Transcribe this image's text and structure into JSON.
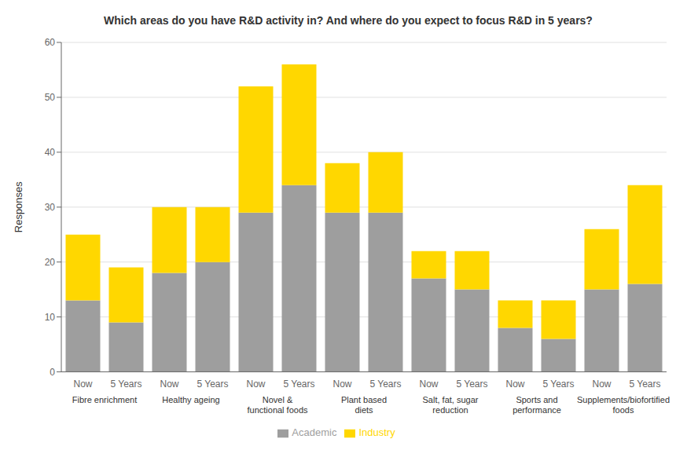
{
  "chart_data": {
    "type": "bar",
    "title": "Which areas do you have R&D activity in? And where do you expect to focus R&D in 5 years?",
    "ylabel": "Responses",
    "categories": [
      "Now",
      "5 Years",
      "Now",
      "5 Years",
      "Now",
      "5 Years",
      "Now",
      "5 Years",
      "Now",
      "5 Years",
      "Now",
      "5 Years",
      "Now",
      "5 Years"
    ],
    "groups": [
      "Fibre enrichment",
      "Healthy ageing",
      "Novel & functional foods",
      "Plant based diets",
      "Salt, fat, sugar reduction",
      "Sports and performance",
      "Supplements/biofortified\nfoods"
    ],
    "series": [
      {
        "name": "Academic",
        "color": "#9E9E9E",
        "values": [
          13,
          9,
          18,
          20,
          29,
          34,
          29,
          29,
          17,
          15,
          8,
          6,
          15,
          16
        ]
      },
      {
        "name": "Industry",
        "color": "#FFD700",
        "values": [
          12,
          10,
          12,
          10,
          23,
          22,
          9,
          11,
          5,
          7,
          5,
          7,
          11,
          18
        ]
      }
    ],
    "stacked": true,
    "ylim": [
      0,
      60
    ],
    "yticks": [
      0,
      10,
      20,
      30,
      40,
      50,
      60
    ],
    "grid": true,
    "legend": "bottom"
  }
}
